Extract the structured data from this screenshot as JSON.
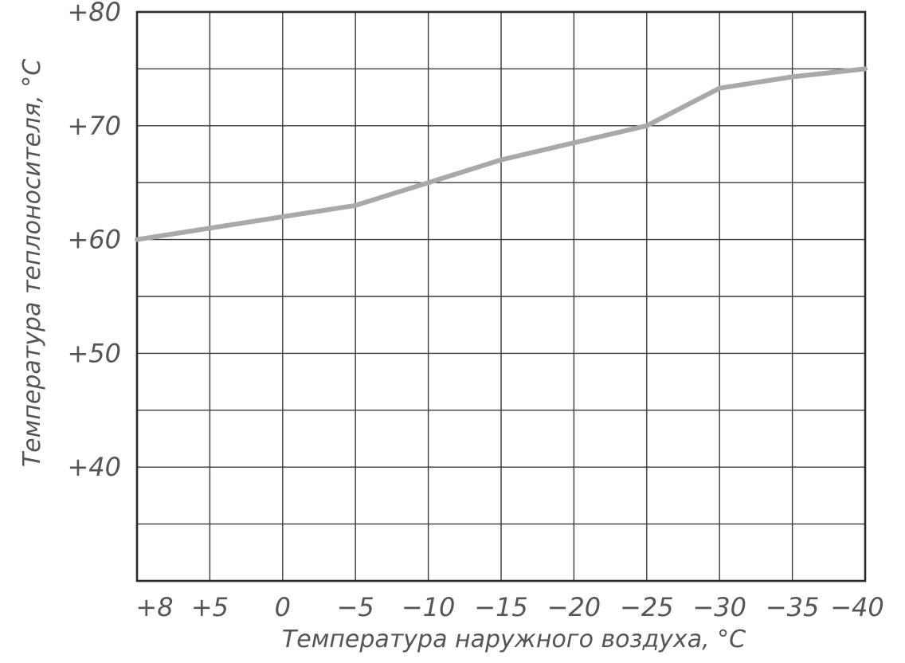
{
  "chart_data": {
    "type": "line",
    "title": "",
    "xlabel": "Температура наружного воздуха, °С",
    "ylabel": "Температура теплоносителя, °С",
    "x_ticks": [
      "+8",
      "+5",
      "0",
      "−5",
      "−10",
      "−15",
      "−20",
      "−25",
      "−30",
      "−35",
      "−40"
    ],
    "y_ticks": [
      "+80",
      "+70",
      "+60",
      "+50",
      "+40"
    ],
    "y_tick_values": [
      80,
      70,
      60,
      50,
      40
    ],
    "x_range": [
      "+8",
      "−40"
    ],
    "ylim": [
      30,
      80
    ],
    "grid": true,
    "series": [
      {
        "x": [
          8,
          5,
          0,
          -5,
          -10,
          -15,
          -20,
          -25,
          -30,
          -35,
          -40
        ],
        "y": [
          60,
          61,
          62,
          63,
          65,
          67,
          68.5,
          70,
          73.3,
          74.3,
          75
        ]
      }
    ],
    "colors": {
      "line": "#a9a9a9",
      "grid": "#3a3a3a",
      "text": "#555555"
    }
  }
}
